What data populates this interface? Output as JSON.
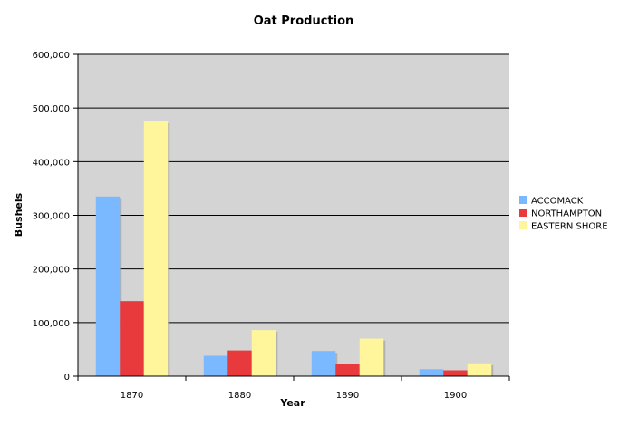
{
  "chart_data": {
    "type": "bar",
    "title": "Oat Production",
    "xlabel": "Year",
    "ylabel": "Bushels",
    "categories": [
      "1870",
      "1880",
      "1890",
      "1900"
    ],
    "ylim": [
      0,
      600000
    ],
    "yticks": [
      "0",
      "100,000",
      "200,000",
      "300,000",
      "400,000",
      "500,000",
      "600,000"
    ],
    "ytick_values": [
      0,
      100000,
      200000,
      300000,
      400000,
      500000,
      600000
    ],
    "grid": true,
    "legend_position": "right",
    "series": [
      {
        "name": "ACCOMACK",
        "color": "#7ab8ff",
        "values": [
          335000,
          38000,
          47000,
          13000
        ]
      },
      {
        "name": "NORTHAMPTON",
        "color": "#e8393d",
        "values": [
          140000,
          48000,
          22000,
          11000
        ]
      },
      {
        "name": "EASTERN SHORE",
        "color": "#fff59b",
        "values": [
          475000,
          86000,
          70000,
          24000
        ]
      }
    ],
    "colors": {
      "plot_background": "#d4d4d4",
      "gridline": "#000000"
    }
  }
}
